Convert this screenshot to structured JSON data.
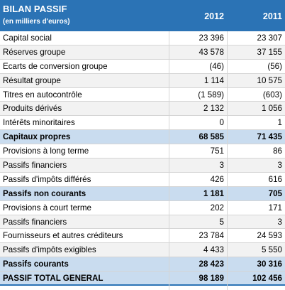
{
  "table": {
    "title": "BILAN PASSIF",
    "subtitle": "(en milliers d'euros)",
    "year_1": "2012",
    "year_2": "2011",
    "rows": [
      {
        "label": "Capital social",
        "v2012": "23 396",
        "v2011": "23 307",
        "kind": "normal"
      },
      {
        "label": "Réserves groupe",
        "v2012": "43 578",
        "v2011": "37 155",
        "kind": "alt"
      },
      {
        "label": "Ecarts de conversion groupe",
        "v2012": "(46)",
        "v2011": "(56)",
        "kind": "normal"
      },
      {
        "label": "Résultat groupe",
        "v2012": "1 114",
        "v2011": "10 575",
        "kind": "alt"
      },
      {
        "label": "Titres en autocontrôle",
        "v2012": "(1 589)",
        "v2011": "(603)",
        "kind": "normal"
      },
      {
        "label": "Produits dérivés",
        "v2012": "2 132",
        "v2011": "1 056",
        "kind": "alt"
      },
      {
        "label": "Intérêts minoritaires",
        "v2012": "0",
        "v2011": "1",
        "kind": "normal"
      },
      {
        "label": "Capitaux propres",
        "v2012": "68 585",
        "v2011": "71 435",
        "kind": "total"
      },
      {
        "label": "Provisions à long terme",
        "v2012": "751",
        "v2011": "86",
        "kind": "normal"
      },
      {
        "label": "Passifs financiers",
        "v2012": "3",
        "v2011": "3",
        "kind": "alt"
      },
      {
        "label": "Passifs d'impôts différés",
        "v2012": "426",
        "v2011": "616",
        "kind": "normal"
      },
      {
        "label": "Passifs non courants",
        "v2012": "1 181",
        "v2011": "705",
        "kind": "total"
      },
      {
        "label": "Provisions à court terme",
        "v2012": "202",
        "v2011": "171",
        "kind": "normal"
      },
      {
        "label": "Passifs financiers",
        "v2012": "5",
        "v2011": "3",
        "kind": "alt"
      },
      {
        "label": "Fournisseurs et autres créditeurs",
        "v2012": "23 784",
        "v2011": "24 593",
        "kind": "normal"
      },
      {
        "label": "Passifs d'impôts exigibles",
        "v2012": "4 433",
        "v2011": "5 550",
        "kind": "alt"
      },
      {
        "label": "Passifs courants",
        "v2012": "28 423",
        "v2011": "30 316",
        "kind": "total"
      },
      {
        "label": "PASSIF TOTAL GENERAL",
        "v2012": "98 189",
        "v2011": "102 456",
        "kind": "grand"
      }
    ]
  },
  "colors": {
    "header_bg": "#2b73b5",
    "total_bg": "#c9dcef",
    "alt_bg": "#f2f2f2"
  }
}
